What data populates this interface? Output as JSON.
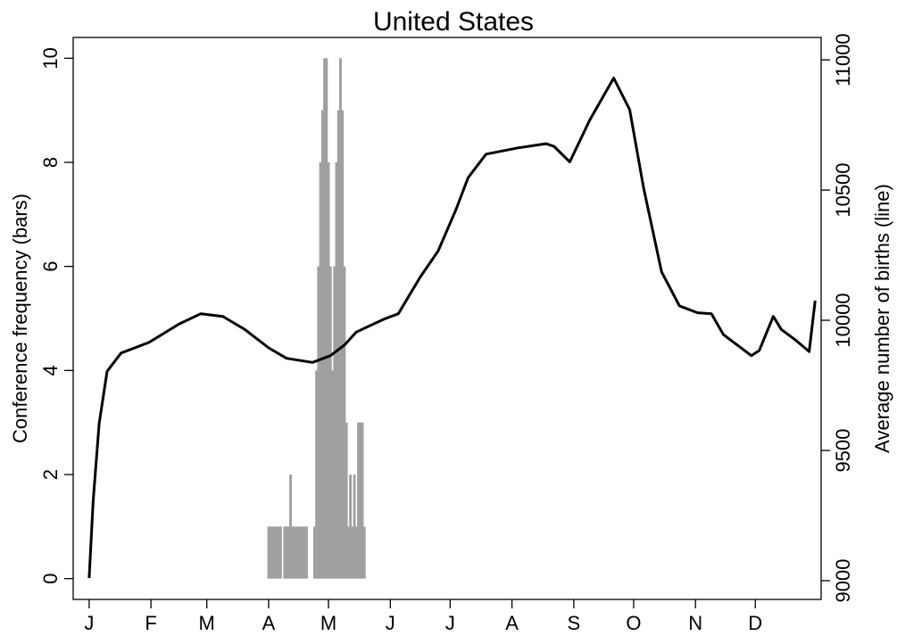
{
  "chart_data": {
    "type": "combo",
    "title": "United States",
    "ylabel": "Conference frequency (bars)",
    "y2label": "Average number of births (line)",
    "xlim": [
      -7,
      368
    ],
    "xticks": [
      {
        "value": 1,
        "label": "J"
      },
      {
        "value": 32,
        "label": "F"
      },
      {
        "value": 60,
        "label": "M"
      },
      {
        "value": 91,
        "label": "A"
      },
      {
        "value": 121,
        "label": "M"
      },
      {
        "value": 152,
        "label": "J"
      },
      {
        "value": 182,
        "label": "J"
      },
      {
        "value": 213,
        "label": "A"
      },
      {
        "value": 244,
        "label": "S"
      },
      {
        "value": 274,
        "label": "O"
      },
      {
        "value": 305,
        "label": "N"
      },
      {
        "value": 335,
        "label": "D"
      }
    ],
    "ylim": [
      -0.4,
      10.4
    ],
    "yticks": [
      0,
      2,
      4,
      6,
      8,
      10
    ],
    "y2lim": [
      8928,
      11086
    ],
    "y2ticks": [
      9000,
      9500,
      10000,
      10500,
      11000
    ],
    "series": [
      {
        "type": "bar",
        "color": "#a0a0a0",
        "x": [
          91,
          92,
          93,
          94,
          95,
          96,
          97,
          99,
          100,
          101,
          102,
          103,
          104,
          105,
          106,
          107,
          108,
          109,
          110,
          114,
          115,
          116,
          117,
          118,
          119,
          120,
          121,
          122,
          123,
          124,
          125,
          126,
          127,
          128,
          129,
          130,
          131,
          132,
          133,
          134,
          135,
          136,
          137,
          138,
          139
        ],
        "values": [
          1,
          1,
          1,
          1,
          1,
          1,
          1,
          1,
          1,
          1,
          2,
          1,
          1,
          1,
          1,
          1,
          1,
          1,
          1,
          1,
          4,
          6,
          8,
          9,
          10,
          10,
          8,
          6,
          4,
          6,
          8,
          9,
          10,
          9,
          6,
          3,
          1,
          2,
          1,
          2,
          1,
          3,
          3,
          3,
          1
        ]
      },
      {
        "type": "line",
        "color": "#000000",
        "axis": "y2",
        "x": [
          1,
          3,
          6,
          10,
          17,
          31,
          46,
          57,
          68,
          79,
          91,
          100,
          113,
          122,
          129,
          135,
          149,
          156,
          167,
          176,
          185,
          191,
          200,
          216,
          230,
          234,
          242,
          252,
          264,
          272,
          279,
          288,
          297,
          306,
          313,
          319,
          333,
          337,
          344,
          348,
          355,
          362,
          365
        ],
        "values": [
          9010,
          9302,
          9603,
          9804,
          9874,
          9915,
          9985,
          10025,
          10015,
          9965,
          9894,
          9854,
          9838,
          9864,
          9905,
          9955,
          10005,
          10025,
          10166,
          10266,
          10427,
          10548,
          10638,
          10662,
          10678,
          10668,
          10608,
          10769,
          10930,
          10809,
          10508,
          10186,
          10055,
          10029,
          10025,
          9945,
          9864,
          9884,
          10015,
          9965,
          9925,
          9880,
          10075
        ]
      }
    ]
  }
}
